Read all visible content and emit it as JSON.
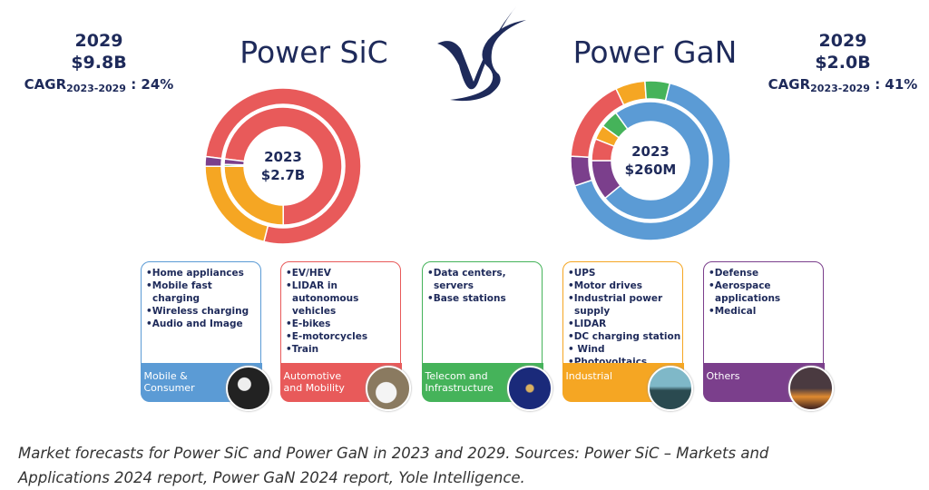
{
  "sic": {
    "title": "Power SiC",
    "year_2029": "2029",
    "value_2029": "$9.8B",
    "cagr_label": "CAGR",
    "cagr_period": "2023-2029",
    "cagr_value": ": 24%",
    "center_year": "2023",
    "center_value": "$2.7B"
  },
  "gan": {
    "title": "Power GaN",
    "year_2029": "2029",
    "value_2029": "$2.0B",
    "cagr_label": "CAGR",
    "cagr_period": "2023-2029",
    "cagr_value": ": 41%",
    "center_year": "2023",
    "center_value": "$260M"
  },
  "vs_logo": "VS",
  "colors": {
    "mobile": "#5b9bd5",
    "automotive": "#e85a5a",
    "telecom": "#45b35a",
    "industrial": "#f5a623",
    "others": "#7b3f8c",
    "navy": "#1e2a5a"
  },
  "chart_data": [
    {
      "type": "pie",
      "title": "Power SiC",
      "series": [
        {
          "name": "2023 (inner ring)",
          "categories": [
            "Automotive and Mobility",
            "Industrial",
            "Telecom and Infrastructure",
            "Others"
          ],
          "values": [
            73,
            25,
            0.5,
            1.5
          ],
          "unit": "% share (estimated)"
        },
        {
          "name": "2029 (outer ring)",
          "categories": [
            "Automotive and Mobility",
            "Industrial",
            "Others"
          ],
          "values": [
            77,
            21,
            2
          ],
          "unit": "% share (estimated)"
        }
      ]
    },
    {
      "type": "pie",
      "title": "Power GaN",
      "series": [
        {
          "name": "2023 (inner ring)",
          "categories": [
            "Mobile & Consumer",
            "Others",
            "Automotive and Mobility",
            "Industrial",
            "Telecom and Infrastructure"
          ],
          "values": [
            74,
            11,
            6,
            4,
            5
          ],
          "unit": "% share (estimated)"
        },
        {
          "name": "2029 (outer ring)",
          "categories": [
            "Mobile & Consumer",
            "Others",
            "Automotive and Mobility",
            "Industrial",
            "Telecom and Infrastructure"
          ],
          "values": [
            66,
            6,
            17,
            6,
            5
          ],
          "unit": "% share (estimated)"
        }
      ]
    }
  ],
  "segments": [
    {
      "label": "Mobile &\nConsumer",
      "color": "#5b9bd5",
      "items": [
        "•Home appliances",
        "•Mobile fast charging",
        "•Wireless charging",
        "•Audio and Image"
      ]
    },
    {
      "label": "Automotive\nand Mobility",
      "color": "#e85a5a",
      "items": [
        "•EV/HEV",
        "•LIDAR in autonomous vehicles",
        "•E-bikes",
        "•E-motorcycles",
        "•Train"
      ]
    },
    {
      "label": "Telecom and\nInfrastructure",
      "color": "#45b35a",
      "items": [
        "•Data centers, servers",
        "•Base stations"
      ]
    },
    {
      "label": "Industrial",
      "color": "#f5a623",
      "items": [
        "•UPS",
        "•Motor drives",
        "•Industrial power supply",
        "•LIDAR",
        "•DC charging station",
        "• Wind",
        "•Photovoltaics"
      ]
    },
    {
      "label": "Others",
      "color": "#7b3f8c",
      "items": [
        "•Defense",
        "•Aerospace applications",
        "•Medical"
      ]
    }
  ],
  "caption": {
    "line1": "Market forecasts for Power SiC and Power GaN in 2023 and 2029. Sources: Power SiC – Markets and",
    "line2": "Applications 2024 report, Power GaN 2024 report, Yole Intelligence."
  }
}
